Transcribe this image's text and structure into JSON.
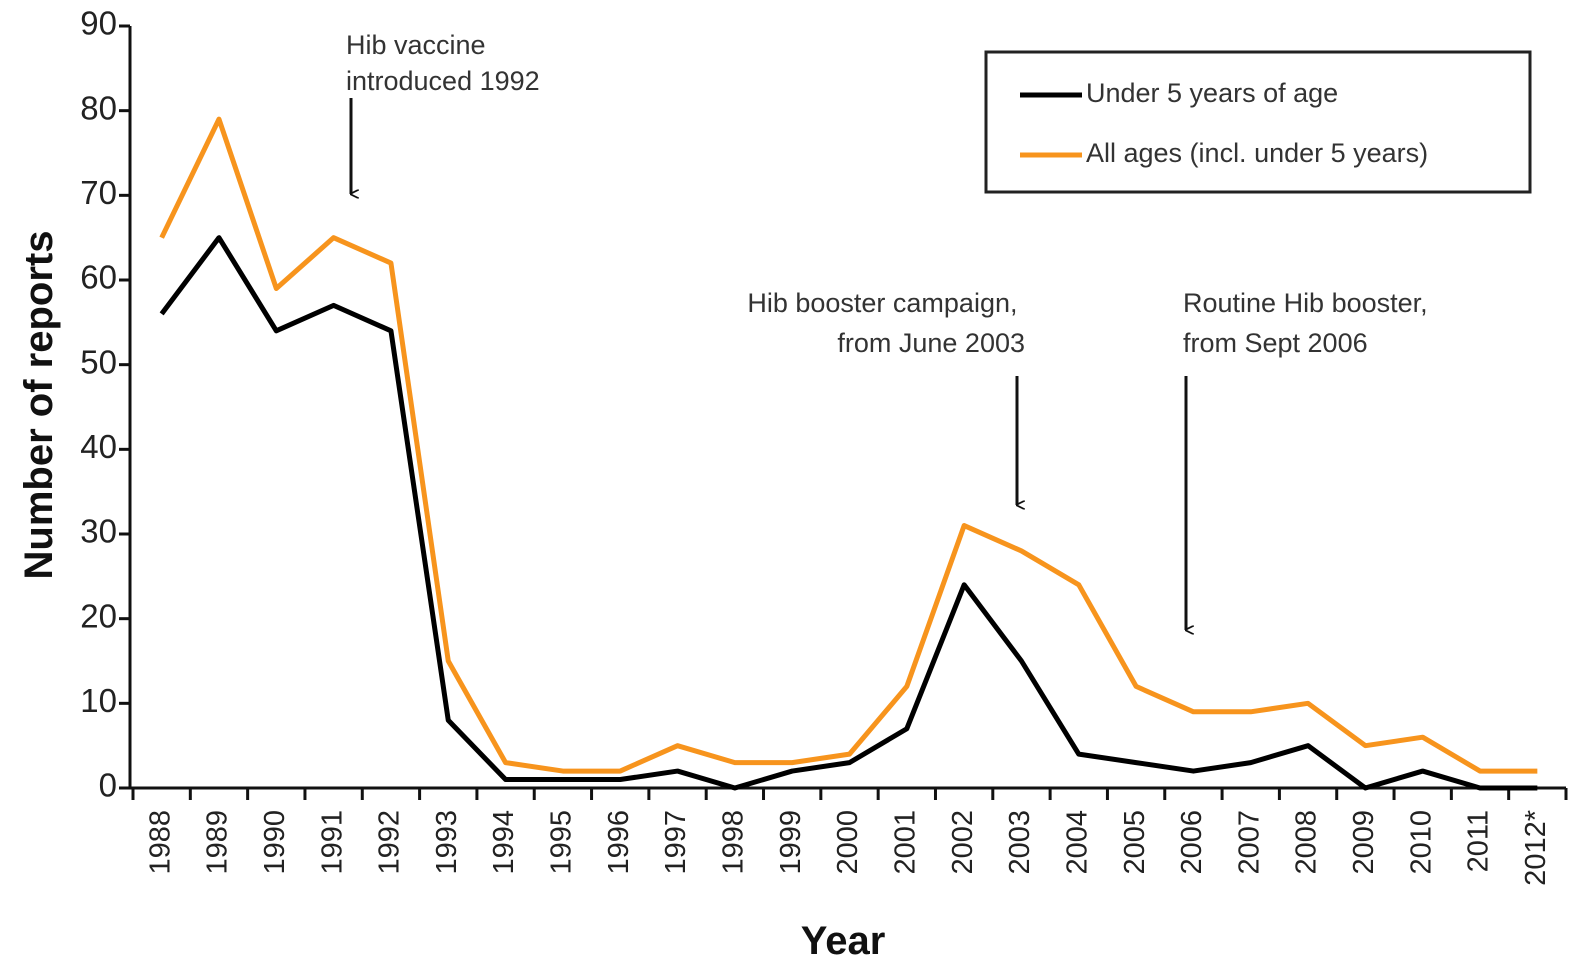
{
  "chart_data": {
    "type": "line",
    "x_label": "Year",
    "y_label": "Number of reports",
    "categories": [
      "1988",
      "1989",
      "1990",
      "1991",
      "1992",
      "1993",
      "1994",
      "1995",
      "1996",
      "1997",
      "1998",
      "1999",
      "2000",
      "2001",
      "2002",
      "2003",
      "2004",
      "2005",
      "2006",
      "2007",
      "2008",
      "2009",
      "2010",
      "2011",
      "2012*"
    ],
    "series": [
      {
        "name": "Under 5 years of age",
        "color": "#000000",
        "values": [
          56,
          65,
          54,
          57,
          54,
          8,
          1,
          1,
          1,
          2,
          0,
          2,
          3,
          7,
          24,
          15,
          4,
          3,
          2,
          3,
          5,
          0,
          2,
          0,
          0
        ]
      },
      {
        "name": "All ages (incl. under 5 years)",
        "color": "#f7941d",
        "values": [
          65,
          79,
          59,
          65,
          62,
          15,
          3,
          2,
          2,
          5,
          3,
          3,
          4,
          12,
          31,
          28,
          24,
          12,
          9,
          9,
          10,
          5,
          6,
          2,
          2
        ]
      }
    ],
    "ylim": [
      0,
      90
    ],
    "yticks": [
      0,
      10,
      20,
      30,
      40,
      50,
      60,
      70,
      80,
      90
    ],
    "legend": "upper right",
    "annotations": [
      {
        "lines": [
          "Hib vaccine",
          "introduced 1992"
        ]
      },
      {
        "lines": [
          "Hib booster campaign,",
          "from June 2003"
        ]
      },
      {
        "lines": [
          "Routine Hib booster,",
          "from Sept 2006"
        ]
      }
    ]
  }
}
